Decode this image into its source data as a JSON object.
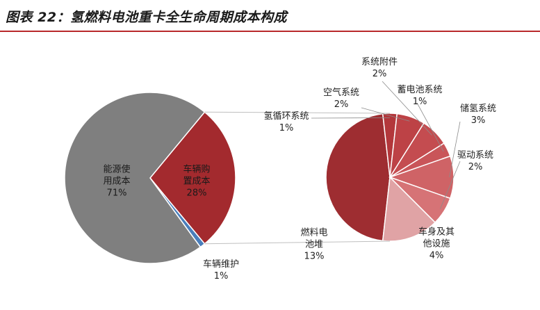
{
  "header": {
    "title": "图表 22：氢燃料电池重卡全生命周期成本构成"
  },
  "colors": {
    "accent": "#b8282a",
    "energy": "#7f7f7f",
    "purchase": "#a32a2e",
    "maintenance": "#4a7ebb",
    "connector": "#bfbfbf"
  },
  "chart_data": [
    {
      "type": "pie",
      "slices": [
        {
          "label": "能源使用成本",
          "display_lines": [
            "能源使",
            "用成本"
          ],
          "value": 71,
          "value_label": "71%",
          "color": "#7f7f7f"
        },
        {
          "label": "车辆购置成本",
          "display_lines": [
            "车辆购",
            "置成本"
          ],
          "value": 28,
          "value_label": "28%",
          "color": "#a32a2e"
        },
        {
          "label": "车辆维护",
          "display_lines": [
            "车辆维护"
          ],
          "value": 1,
          "value_label": "1%",
          "color": "#4a7ebb"
        }
      ]
    },
    {
      "type": "pie",
      "breakdown_of": "车辆购置成本",
      "slices": [
        {
          "label": "燃料电池堆",
          "display_lines": [
            "燃料电",
            "池堆"
          ],
          "value": 13,
          "value_label": "13%",
          "color": "#9e2d31"
        },
        {
          "label": "氢循环系统",
          "display_lines": [
            "氢循环系统"
          ],
          "value": 1,
          "value_label": "1%",
          "color": "#b3373b"
        },
        {
          "label": "空气系统",
          "display_lines": [
            "空气系统"
          ],
          "value": 2,
          "value_label": "2%",
          "color": "#bd4246"
        },
        {
          "label": "系统附件",
          "display_lines": [
            "系统附件"
          ],
          "value": 2,
          "value_label": "2%",
          "color": "#c44c50"
        },
        {
          "label": "蓄电池系统",
          "display_lines": [
            "蓄电池系统"
          ],
          "value": 1,
          "value_label": "1%",
          "color": "#c95559"
        },
        {
          "label": "储氢系统",
          "display_lines": [
            "储氢系统"
          ],
          "value": 3,
          "value_label": "3%",
          "color": "#cf6366"
        },
        {
          "label": "驱动系统",
          "display_lines": [
            "驱动系统"
          ],
          "value": 2,
          "value_label": "2%",
          "color": "#d67376"
        },
        {
          "label": "车身及其他设施",
          "display_lines": [
            "车身及其",
            "他设施"
          ],
          "value": 4,
          "value_label": "4%",
          "color": "#e0a3a5"
        }
      ]
    }
  ]
}
